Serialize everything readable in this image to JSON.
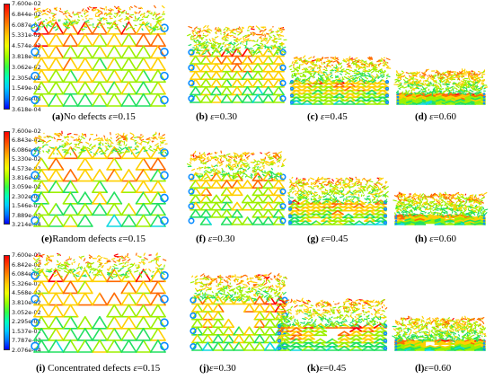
{
  "legends": [
    {
      "labels": [
        "7.600e-02",
        "6.844e-02",
        "6.087e-02",
        "5.331e-02",
        "4.574e-02",
        "3.818e-02",
        "3.062e-02",
        "2.305e-02",
        "1.549e-02",
        "7.926e-03",
        "3.618e-04"
      ]
    },
    {
      "labels": [
        "7.600e-02",
        "6.843e-02",
        "6.086e-02",
        "5.330e-02",
        "4.573e-02",
        "3.816e-02",
        "3.059e-02",
        "2.302e-02",
        "1.546e-02",
        "7.889e-03",
        "3.214e-04"
      ]
    },
    {
      "labels": [
        "7.600e-02",
        "6.842e-02",
        "6.084e-02",
        "5.326e-02",
        "4.568e-02",
        "3.810e-02",
        "3.052e-02",
        "2.295e-02",
        "1.537e-02",
        "7.787e-03",
        "2.076e-04"
      ]
    }
  ],
  "legend_colors": [
    "#ff0000",
    "#ff4400",
    "#ff8800",
    "#ffcc00",
    "#eeff00",
    "#99ff00",
    "#33ff44",
    "#00ffbb",
    "#00ccff",
    "#0077ff",
    "#0000ff"
  ],
  "captions": [
    [
      {
        "tag": "(a)",
        "name": "No defects ",
        "eps": "ε",
        "val": "=0.15"
      },
      {
        "tag": "(b) ",
        "name": "",
        "eps": "ε",
        "val": "=0.30"
      },
      {
        "tag": "(c) ",
        "name": "",
        "eps": "ε",
        "val": "=0.45"
      },
      {
        "tag": "(d) ",
        "name": "",
        "eps": "ε",
        "val": "=0.60"
      }
    ],
    [
      {
        "tag": "(e)",
        "name": "Random defects ",
        "eps": "ε",
        "val": "=0.15"
      },
      {
        "tag": "(f) ",
        "name": "",
        "eps": "ε",
        "val": "=0.30"
      },
      {
        "tag": "(g) ",
        "name": "",
        "eps": "ε",
        "val": "=0.45"
      },
      {
        "tag": "(h) ",
        "name": "",
        "eps": "ε",
        "val": "=0.60"
      }
    ],
    [
      {
        "tag": "(i) ",
        "name": "Concentrated defects ",
        "eps": "ε",
        "val": "=0.15"
      },
      {
        "tag": "(j)",
        "name": "",
        "eps": "ε",
        "val": "=0.30"
      },
      {
        "tag": "(k)",
        "name": "",
        "eps": "ε",
        "val": "=0.45"
      },
      {
        "tag": "(l)",
        "name": "",
        "eps": "ε",
        "val": "=0.60"
      }
    ]
  ]
}
